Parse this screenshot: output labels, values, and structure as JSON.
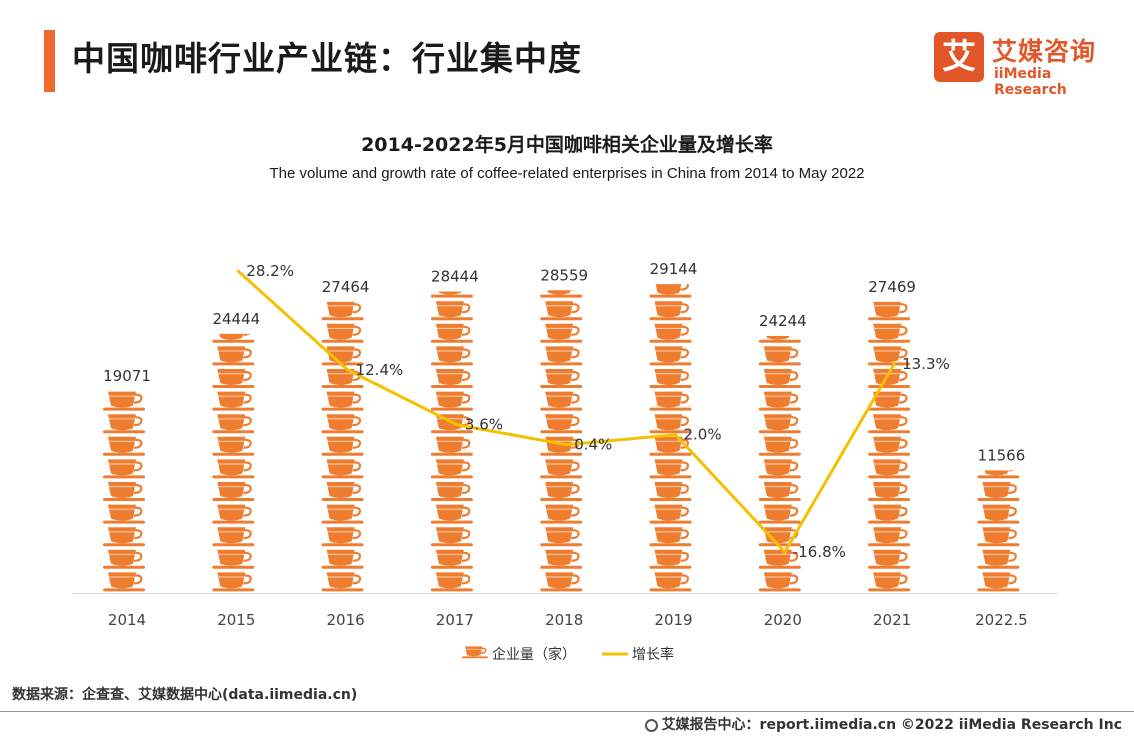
{
  "header": {
    "title": "中国咖啡行业产业链：行业集中度",
    "accent_color": "#ef6a2d"
  },
  "logo": {
    "glyph": "艾",
    "name_cn": "艾媒咨询",
    "name_en": "iiMedia Research",
    "color": "#e2572a"
  },
  "chart_data": {
    "type": "bar",
    "title": "2014-2022年5月中国咖啡相关企业量及增长率",
    "subtitle": "The volume and growth rate of coffee-related enterprises in China from 2014 to May 2022",
    "categories": [
      "2014",
      "2015",
      "2016",
      "2017",
      "2018",
      "2019",
      "2020",
      "2021",
      "2022.5"
    ],
    "series": [
      {
        "name": "企业量（家）",
        "type": "bar",
        "mark": "stacked-coffee-cup-icon",
        "color": "#ef7d30",
        "values": [
          19071,
          24444,
          27464,
          28444,
          28559,
          29144,
          24244,
          27469,
          11566
        ],
        "labels": [
          "19071",
          "24444",
          "27464",
          "28444",
          "28559",
          "29144",
          "24244",
          "27469",
          "11566"
        ]
      },
      {
        "name": "增长率",
        "type": "line",
        "color": "#f5c000",
        "x": [
          "2015",
          "2016",
          "2017",
          "2018",
          "2019",
          "2020",
          "2021"
        ],
        "values": [
          28.2,
          12.4,
          3.6,
          0.4,
          2.0,
          -16.8,
          13.3
        ],
        "labels": [
          "28.2%",
          "12.4%",
          "3.6%",
          "0.4%",
          "2.0%",
          "-16.8%",
          "13.3%"
        ]
      }
    ],
    "ylim": [
      0,
      30000
    ],
    "y2lim": [
      -20,
      30
    ],
    "grid": false,
    "legend": "bottom-center"
  },
  "source": "数据来源：企查查、艾媒数据中心(data.iimedia.cn)",
  "footer": {
    "text": "艾媒报告中心：report.iimedia.cn  ©2022  iiMedia Research  Inc"
  }
}
